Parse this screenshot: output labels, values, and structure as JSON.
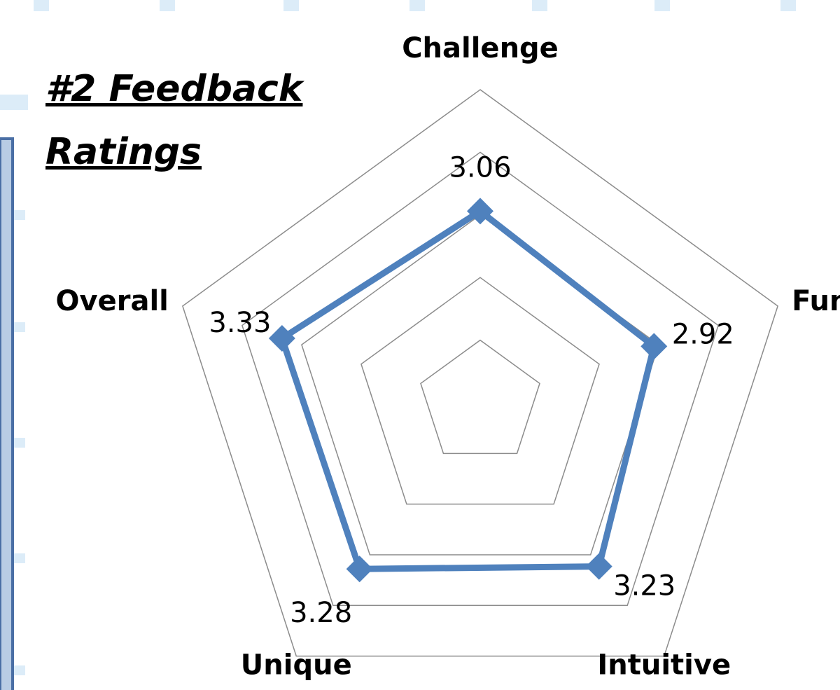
{
  "chart_data": {
    "type": "radar",
    "title": "#2 Feedback Ratings",
    "categories": [
      "Challenge",
      "Fun",
      "Intuitive",
      "Unique",
      "Overall"
    ],
    "series": [
      {
        "name": null,
        "color": "#4f81bd",
        "values": [
          3.06,
          2.92,
          3.23,
          3.28,
          3.33
        ]
      }
    ],
    "rlim": [
      0,
      5
    ],
    "rticks": [
      1,
      2,
      3,
      4,
      5
    ],
    "grid": true
  }
}
